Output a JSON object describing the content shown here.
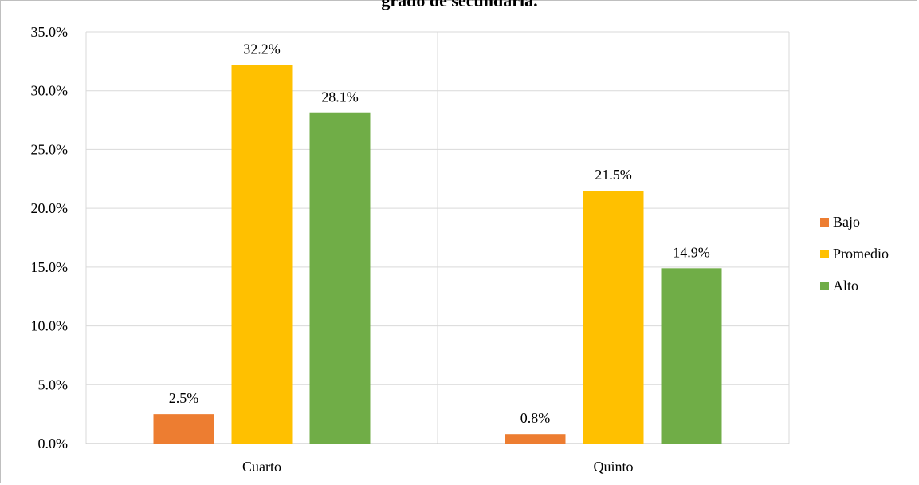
{
  "chart_data": {
    "type": "bar",
    "title": "grado de secundaria.",
    "categories": [
      "Cuarto",
      "Quinto"
    ],
    "series": [
      {
        "name": "Bajo",
        "values": [
          2.5,
          0.8
        ],
        "color": "#ed7d31"
      },
      {
        "name": "Promedio",
        "values": [
          32.2,
          21.5
        ],
        "color": "#ffc000"
      },
      {
        "name": "Alto",
        "values": [
          28.1,
          14.9
        ],
        "color": "#70ad47"
      }
    ],
    "value_labels": [
      [
        "2.5%",
        "0.8%"
      ],
      [
        "32.2%",
        "21.5%"
      ],
      [
        "28.1%",
        "14.9%"
      ]
    ],
    "ylim": [
      0,
      35
    ],
    "yticks": [
      "0.0%",
      "5.0%",
      "10.0%",
      "15.0%",
      "20.0%",
      "25.0%",
      "30.0%",
      "35.0%"
    ],
    "xlabel": "",
    "ylabel": "",
    "grid": true,
    "legend_position": "right"
  }
}
